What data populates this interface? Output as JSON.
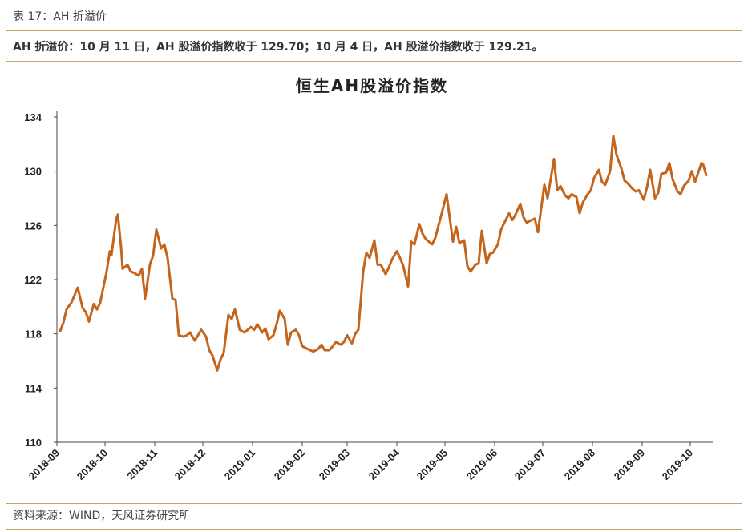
{
  "header": {
    "caption": "表 17：AH 折溢价",
    "summary": "AH 折溢价：10 月 11 日，AH 股溢价指数收于 129.70；10 月 4 日，AH 股溢价指数收于 129.21。"
  },
  "footer": {
    "source": "资料来源：WIND，天风证券研究所"
  },
  "colors": {
    "line": "#c5651c",
    "rule": "#c9a45c",
    "axis": "#444444"
  },
  "chart_data": {
    "type": "line",
    "title": "恒生AH股溢价指数",
    "xlabel": "",
    "ylabel": "",
    "ylim": [
      110,
      134
    ],
    "yticks": [
      "110",
      "114",
      "118",
      "122",
      "126",
      "130",
      "134"
    ],
    "xticks": [
      "2018-09",
      "2018-10",
      "2018-11",
      "2018-12",
      "2019-01",
      "2019-02",
      "2019-03",
      "2019-04",
      "2019-05",
      "2019-06",
      "2019-07",
      "2019-08",
      "2019-09",
      "2019-10"
    ],
    "grid": false,
    "legend": "none",
    "series": [
      {
        "x": [
          "2018-09-03",
          "2018-09-05",
          "2018-09-07",
          "2018-09-10",
          "2018-09-14",
          "2018-09-17",
          "2018-09-19",
          "2018-09-21",
          "2018-09-24",
          "2018-09-26",
          "2018-09-28",
          "2018-10-02",
          "2018-10-04",
          "2018-10-05",
          "2018-10-08",
          "2018-10-09",
          "2018-10-11",
          "2018-10-12",
          "2018-10-15",
          "2018-10-17",
          "2018-10-19",
          "2018-10-22",
          "2018-10-24",
          "2018-10-26",
          "2018-10-29",
          "2018-10-31",
          "2018-11-02",
          "2018-11-05",
          "2018-11-07",
          "2018-11-09",
          "2018-11-12",
          "2018-11-14",
          "2018-11-16",
          "2018-11-19",
          "2018-11-21",
          "2018-11-23",
          "2018-11-26",
          "2018-11-28",
          "2018-11-30",
          "2018-12-03",
          "2018-12-05",
          "2018-12-07",
          "2018-12-10",
          "2018-12-12",
          "2018-12-14",
          "2018-12-17",
          "2018-12-19",
          "2018-12-21",
          "2018-12-24",
          "2018-12-27",
          "2018-12-31",
          "2019-01-02",
          "2019-01-04",
          "2019-01-07",
          "2019-01-09",
          "2019-01-11",
          "2019-01-14",
          "2019-01-16",
          "2019-01-18",
          "2019-01-21",
          "2019-01-23",
          "2019-01-25",
          "2019-01-28",
          "2019-01-30",
          "2019-02-01",
          "2019-02-04",
          "2019-02-08",
          "2019-02-11",
          "2019-02-13",
          "2019-02-15",
          "2019-02-18",
          "2019-02-20",
          "2019-02-22",
          "2019-02-25",
          "2019-02-27",
          "2019-03-01",
          "2019-03-04",
          "2019-03-06",
          "2019-03-08",
          "2019-03-11",
          "2019-03-13",
          "2019-03-15",
          "2019-03-18",
          "2019-03-20",
          "2019-03-22",
          "2019-03-25",
          "2019-03-27",
          "2019-03-29",
          "2019-04-01",
          "2019-04-03",
          "2019-04-05",
          "2019-04-08",
          "2019-04-10",
          "2019-04-12",
          "2019-04-15",
          "2019-04-17",
          "2019-04-19",
          "2019-04-23",
          "2019-04-25",
          "2019-04-29",
          "2019-05-02",
          "2019-05-06",
          "2019-05-08",
          "2019-05-10",
          "2019-05-13",
          "2019-05-15",
          "2019-05-17",
          "2019-05-20",
          "2019-05-22",
          "2019-05-24",
          "2019-05-27",
          "2019-05-29",
          "2019-05-31",
          "2019-06-03",
          "2019-06-05",
          "2019-06-10",
          "2019-06-12",
          "2019-06-14",
          "2019-06-17",
          "2019-06-19",
          "2019-06-21",
          "2019-06-24",
          "2019-06-26",
          "2019-06-28",
          "2019-07-02",
          "2019-07-04",
          "2019-07-08",
          "2019-07-10",
          "2019-07-12",
          "2019-07-15",
          "2019-07-17",
          "2019-07-19",
          "2019-07-22",
          "2019-07-24",
          "2019-07-26",
          "2019-07-29",
          "2019-07-31",
          "2019-08-02",
          "2019-08-05",
          "2019-08-07",
          "2019-08-09",
          "2019-08-12",
          "2019-08-14",
          "2019-08-16",
          "2019-08-19",
          "2019-08-21",
          "2019-08-23",
          "2019-08-26",
          "2019-08-28",
          "2019-08-30",
          "2019-09-02",
          "2019-09-04",
          "2019-09-06",
          "2019-09-09",
          "2019-09-11",
          "2019-09-13",
          "2019-09-16",
          "2019-09-18",
          "2019-09-20",
          "2019-09-23",
          "2019-09-25",
          "2019-09-27",
          "2019-09-30",
          "2019-10-02",
          "2019-10-04",
          "2019-10-08",
          "2019-10-09",
          "2019-10-11"
        ],
        "values": [
          118.2,
          118.8,
          119.8,
          120.3,
          121.4,
          119.9,
          119.6,
          118.9,
          120.2,
          119.8,
          120.3,
          122.6,
          124.1,
          123.8,
          126.5,
          126.8,
          124.4,
          122.8,
          123.1,
          122.6,
          122.5,
          122.3,
          122.8,
          120.6,
          123.1,
          123.8,
          125.7,
          124.3,
          124.6,
          123.6,
          120.6,
          120.5,
          117.9,
          117.8,
          117.9,
          118.1,
          117.5,
          117.9,
          118.3,
          117.8,
          116.8,
          116.4,
          115.3,
          116.1,
          116.6,
          119.4,
          119.1,
          119.8,
          118.3,
          118.1,
          118.5,
          118.3,
          118.7,
          118.1,
          118.4,
          117.6,
          117.9,
          118.7,
          119.7,
          119.1,
          117.2,
          118.1,
          118.3,
          117.9,
          117.1,
          116.9,
          116.7,
          116.9,
          117.2,
          116.8,
          116.8,
          117.1,
          117.4,
          117.2,
          117.4,
          117.9,
          117.3,
          118.0,
          118.3,
          122.6,
          124.0,
          123.6,
          124.9,
          123.1,
          123.1,
          122.4,
          122.9,
          123.5,
          124.1,
          123.6,
          123.0,
          121.5,
          124.8,
          124.6,
          126.1,
          125.4,
          125.0,
          124.6,
          125.1,
          126.9,
          128.3,
          124.8,
          125.9,
          124.7,
          124.9,
          123.0,
          122.6,
          123.1,
          123.2,
          125.6,
          123.2,
          123.9,
          124.0,
          124.6,
          125.7,
          126.9,
          126.4,
          126.8,
          127.6,
          126.6,
          126.2,
          126.4,
          126.5,
          125.5,
          129.0,
          128.0,
          130.9,
          128.6,
          128.9,
          128.2,
          128.0,
          128.3,
          128.1,
          126.9,
          127.7,
          128.3,
          128.6,
          129.5,
          130.1,
          129.2,
          129.0,
          130.0,
          132.6,
          131.2,
          130.2,
          129.3,
          129.1,
          128.7,
          128.5,
          128.6,
          127.9,
          128.8,
          130.1,
          128.0,
          128.4,
          129.8,
          129.9,
          130.6,
          129.4,
          128.5,
          128.3,
          128.9,
          129.3,
          130.0,
          129.21,
          130.6,
          130.5,
          129.7
        ]
      }
    ]
  }
}
